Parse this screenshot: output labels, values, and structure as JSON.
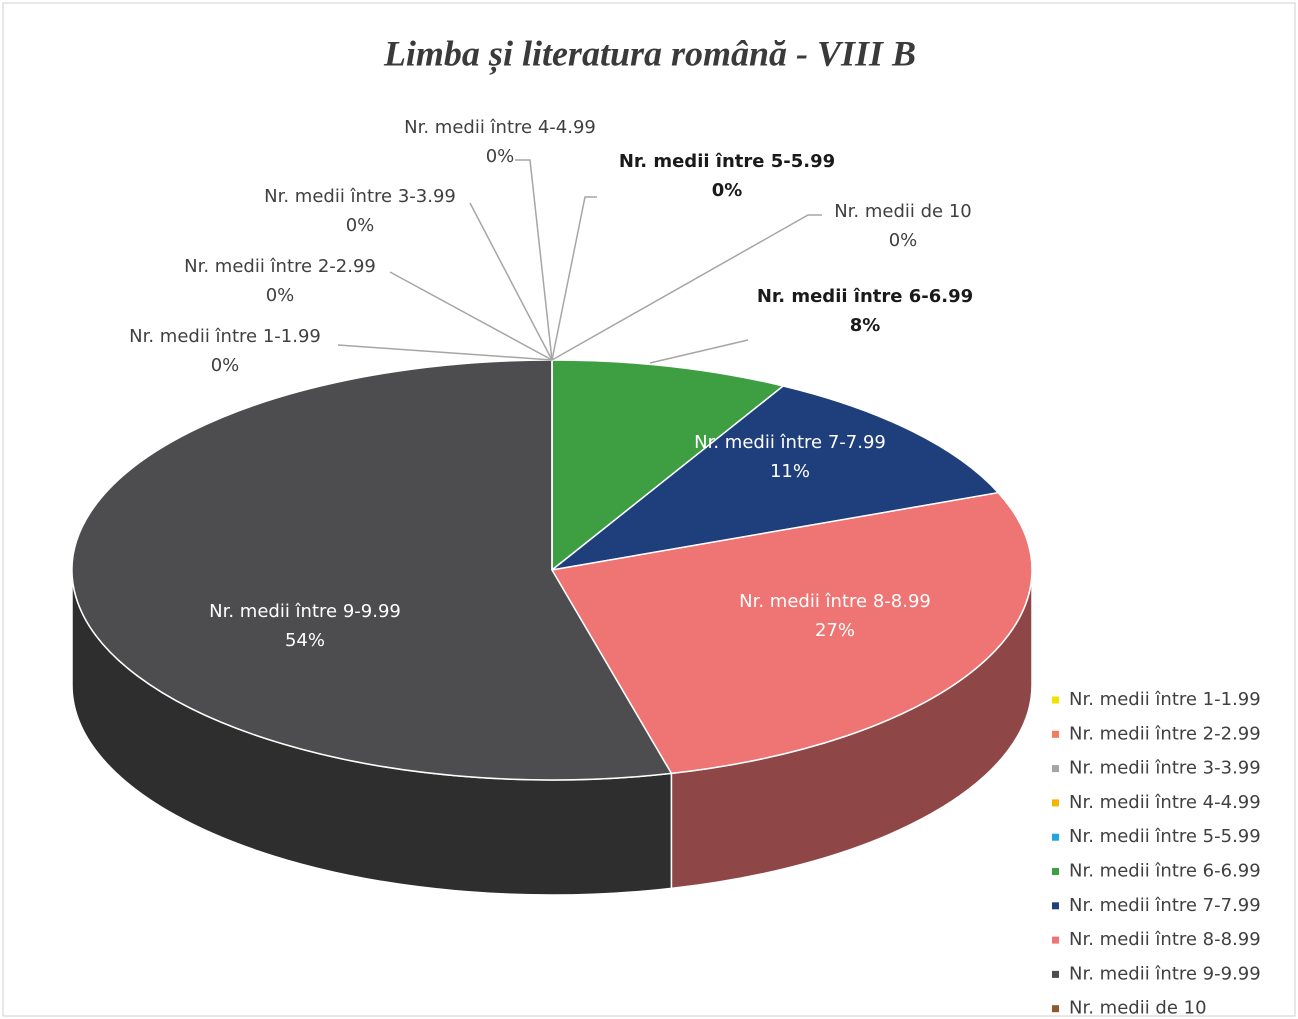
{
  "chart_data": {
    "type": "pie",
    "title": "Limba și literatura română - VIII B",
    "categories": [
      "Nr. medii între 1-1.99",
      "Nr. medii între 2-2.99",
      "Nr. medii între 3-3.99",
      "Nr. medii între 4-4.99",
      "Nr. medii între 5-5.99",
      "Nr. medii între 6-6.99",
      "Nr. medii între 7-7.99",
      "Nr. medii între 8-8.99",
      "Nr. medii între 9-9.99",
      "Nr. medii de 10"
    ],
    "values": [
      0,
      0,
      0,
      0,
      0,
      8,
      11,
      27,
      54,
      0
    ],
    "value_labels": [
      "0%",
      "0%",
      "0%",
      "0%",
      "0%",
      "8%",
      "11%",
      "27%",
      "54%",
      "0%"
    ],
    "colors": [
      "#f2e200",
      "#ef7d5e",
      "#a5a5a5",
      "#f5b400",
      "#1fa6df",
      "#3e9e42",
      "#1f3f7c",
      "#ef7474",
      "#4d4d4f",
      "#8c5a2e"
    ],
    "legend": "right"
  }
}
